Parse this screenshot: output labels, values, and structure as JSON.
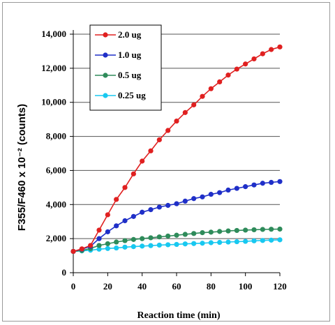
{
  "chart_data": {
    "type": "line",
    "title": "",
    "xlabel": "Reaction time (min)",
    "ylabel": "F355/F460 x 10⁻² (counts)",
    "xlim": [
      0,
      120
    ],
    "ylim": [
      0,
      14000
    ],
    "xticks": [
      0,
      20,
      40,
      60,
      80,
      100,
      120
    ],
    "yticks": [
      0,
      2000,
      4000,
      6000,
      8000,
      10000,
      12000,
      14000
    ],
    "xtick_labels": [
      "0",
      "20",
      "40",
      "60",
      "80",
      "100",
      "120"
    ],
    "ytick_labels": [
      "0",
      "2,000",
      "4,000",
      "6,000",
      "8,000",
      "10,000",
      "12,000",
      "14,000"
    ],
    "grid": "horizontal",
    "legend_position": "top-left",
    "x": [
      0,
      5,
      10,
      15,
      20,
      25,
      30,
      35,
      40,
      45,
      50,
      55,
      60,
      65,
      70,
      75,
      80,
      85,
      90,
      95,
      100,
      105,
      110,
      115,
      120
    ],
    "series": [
      {
        "name": "2.0 ug",
        "color": "#e02020",
        "values": [
          1250,
          1400,
          1600,
          2500,
          3400,
          4300,
          5000,
          5800,
          6550,
          7150,
          7800,
          8350,
          8900,
          9400,
          9850,
          10350,
          10800,
          11200,
          11600,
          11950,
          12250,
          12550,
          12850,
          13100,
          13250
        ]
      },
      {
        "name": "1.0 ug",
        "color": "#1f2fc8",
        "values": [
          1250,
          1380,
          1550,
          2000,
          2400,
          2750,
          3050,
          3300,
          3550,
          3700,
          3850,
          3950,
          4050,
          4200,
          4350,
          4450,
          4600,
          4700,
          4850,
          4950,
          5050,
          5150,
          5250,
          5300,
          5350
        ]
      },
      {
        "name": "0.5 ug",
        "color": "#2e8b5a",
        "values": [
          1250,
          1300,
          1420,
          1600,
          1700,
          1800,
          1880,
          1950,
          2000,
          2050,
          2100,
          2150,
          2200,
          2250,
          2300,
          2350,
          2380,
          2420,
          2450,
          2480,
          2500,
          2520,
          2540,
          2550,
          2560
        ]
      },
      {
        "name": "0.25 ug",
        "color": "#18c8f0",
        "values": [
          1250,
          1280,
          1320,
          1380,
          1420,
          1450,
          1500,
          1530,
          1560,
          1590,
          1620,
          1640,
          1660,
          1690,
          1710,
          1730,
          1760,
          1780,
          1800,
          1820,
          1840,
          1870,
          1890,
          1910,
          1930
        ]
      }
    ]
  }
}
